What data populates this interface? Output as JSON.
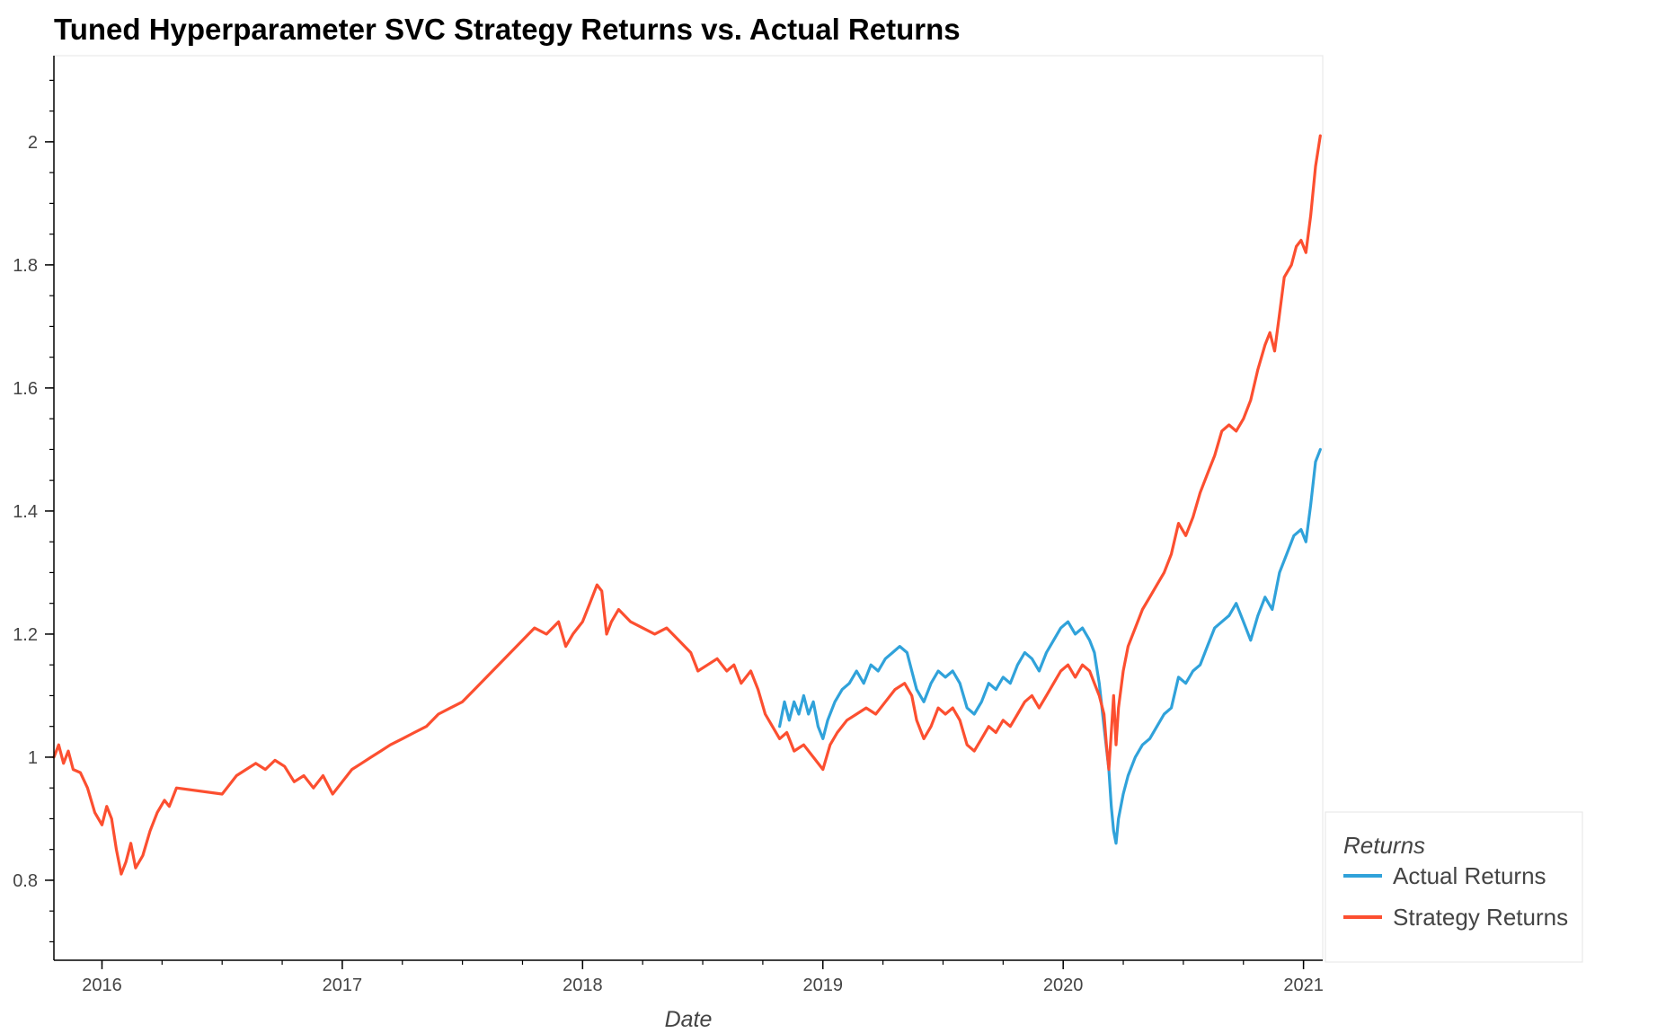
{
  "chart_data": {
    "type": "line",
    "title": "Tuned Hyperparameter SVC Strategy Returns vs. Actual Returns",
    "xlabel": "Date",
    "ylabel": "",
    "xlim": [
      2015.8,
      2021.08
    ],
    "ylim": [
      0.67,
      2.14
    ],
    "x_ticks": [
      "2016",
      "2017",
      "2018",
      "2019",
      "2020",
      "2021"
    ],
    "x_tick_values": [
      2016,
      2017,
      2018,
      2019,
      2020,
      2021
    ],
    "y_ticks": [
      "0.8",
      "1",
      "1.2",
      "1.4",
      "1.6",
      "1.8",
      "2"
    ],
    "y_tick_values": [
      0.8,
      1.0,
      1.2,
      1.4,
      1.6,
      1.8,
      2.0
    ],
    "grid": false,
    "legend": {
      "title": "Returns",
      "placement": "outside-bottom-right"
    },
    "series": [
      {
        "name": "Actual Returns",
        "color": "#30a2da",
        "points": [
          [
            2018.82,
            1.05
          ],
          [
            2018.84,
            1.09
          ],
          [
            2018.86,
            1.06
          ],
          [
            2018.88,
            1.09
          ],
          [
            2018.9,
            1.07
          ],
          [
            2018.92,
            1.1
          ],
          [
            2018.94,
            1.07
          ],
          [
            2018.96,
            1.09
          ],
          [
            2018.98,
            1.05
          ],
          [
            2019.0,
            1.03
          ],
          [
            2019.02,
            1.06
          ],
          [
            2019.05,
            1.09
          ],
          [
            2019.08,
            1.11
          ],
          [
            2019.11,
            1.12
          ],
          [
            2019.14,
            1.14
          ],
          [
            2019.17,
            1.12
          ],
          [
            2019.2,
            1.15
          ],
          [
            2019.23,
            1.14
          ],
          [
            2019.26,
            1.16
          ],
          [
            2019.29,
            1.17
          ],
          [
            2019.32,
            1.18
          ],
          [
            2019.35,
            1.17
          ],
          [
            2019.37,
            1.14
          ],
          [
            2019.39,
            1.11
          ],
          [
            2019.42,
            1.09
          ],
          [
            2019.45,
            1.12
          ],
          [
            2019.48,
            1.14
          ],
          [
            2019.51,
            1.13
          ],
          [
            2019.54,
            1.14
          ],
          [
            2019.57,
            1.12
          ],
          [
            2019.6,
            1.08
          ],
          [
            2019.63,
            1.07
          ],
          [
            2019.66,
            1.09
          ],
          [
            2019.69,
            1.12
          ],
          [
            2019.72,
            1.11
          ],
          [
            2019.75,
            1.13
          ],
          [
            2019.78,
            1.12
          ],
          [
            2019.81,
            1.15
          ],
          [
            2019.84,
            1.17
          ],
          [
            2019.87,
            1.16
          ],
          [
            2019.9,
            1.14
          ],
          [
            2019.93,
            1.17
          ],
          [
            2019.96,
            1.19
          ],
          [
            2019.99,
            1.21
          ],
          [
            2020.02,
            1.22
          ],
          [
            2020.05,
            1.2
          ],
          [
            2020.08,
            1.21
          ],
          [
            2020.11,
            1.19
          ],
          [
            2020.13,
            1.17
          ],
          [
            2020.15,
            1.12
          ],
          [
            2020.17,
            1.05
          ],
          [
            2020.19,
            0.98
          ],
          [
            2020.2,
            0.92
          ],
          [
            2020.21,
            0.88
          ],
          [
            2020.22,
            0.86
          ],
          [
            2020.23,
            0.9
          ],
          [
            2020.25,
            0.94
          ],
          [
            2020.27,
            0.97
          ],
          [
            2020.3,
            1.0
          ],
          [
            2020.33,
            1.02
          ],
          [
            2020.36,
            1.03
          ],
          [
            2020.39,
            1.05
          ],
          [
            2020.42,
            1.07
          ],
          [
            2020.45,
            1.08
          ],
          [
            2020.48,
            1.13
          ],
          [
            2020.51,
            1.12
          ],
          [
            2020.54,
            1.14
          ],
          [
            2020.57,
            1.15
          ],
          [
            2020.6,
            1.18
          ],
          [
            2020.63,
            1.21
          ],
          [
            2020.66,
            1.22
          ],
          [
            2020.69,
            1.23
          ],
          [
            2020.72,
            1.25
          ],
          [
            2020.75,
            1.22
          ],
          [
            2020.78,
            1.19
          ],
          [
            2020.81,
            1.23
          ],
          [
            2020.84,
            1.26
          ],
          [
            2020.87,
            1.24
          ],
          [
            2020.9,
            1.3
          ],
          [
            2020.93,
            1.33
          ],
          [
            2020.96,
            1.36
          ],
          [
            2020.99,
            1.37
          ],
          [
            2021.01,
            1.35
          ],
          [
            2021.03,
            1.41
          ],
          [
            2021.05,
            1.48
          ],
          [
            2021.07,
            1.5
          ]
        ]
      },
      {
        "name": "Strategy Returns",
        "color": "#fc4f30",
        "points": [
          [
            2015.8,
            1.0
          ],
          [
            2015.82,
            1.02
          ],
          [
            2015.84,
            0.99
          ],
          [
            2015.86,
            1.01
          ],
          [
            2015.88,
            0.98
          ],
          [
            2015.91,
            0.975
          ],
          [
            2015.94,
            0.95
          ],
          [
            2015.97,
            0.91
          ],
          [
            2016.0,
            0.89
          ],
          [
            2016.02,
            0.92
          ],
          [
            2016.04,
            0.9
          ],
          [
            2016.06,
            0.85
          ],
          [
            2016.08,
            0.81
          ],
          [
            2016.1,
            0.83
          ],
          [
            2016.12,
            0.86
          ],
          [
            2016.14,
            0.82
          ],
          [
            2016.17,
            0.84
          ],
          [
            2016.2,
            0.88
          ],
          [
            2016.23,
            0.91
          ],
          [
            2016.26,
            0.93
          ],
          [
            2016.28,
            0.92
          ],
          [
            2016.31,
            0.95
          ],
          [
            2016.5,
            0.94
          ],
          [
            2016.53,
            0.955
          ],
          [
            2016.56,
            0.97
          ],
          [
            2016.6,
            0.98
          ],
          [
            2016.64,
            0.99
          ],
          [
            2016.68,
            0.98
          ],
          [
            2016.72,
            0.995
          ],
          [
            2016.76,
            0.985
          ],
          [
            2016.8,
            0.96
          ],
          [
            2016.84,
            0.97
          ],
          [
            2016.88,
            0.95
          ],
          [
            2016.92,
            0.97
          ],
          [
            2016.96,
            0.94
          ],
          [
            2017.0,
            0.96
          ],
          [
            2017.04,
            0.98
          ],
          [
            2017.08,
            0.99
          ],
          [
            2017.12,
            1.0
          ],
          [
            2017.16,
            1.01
          ],
          [
            2017.2,
            1.02
          ],
          [
            2017.25,
            1.03
          ],
          [
            2017.3,
            1.04
          ],
          [
            2017.35,
            1.05
          ],
          [
            2017.4,
            1.07
          ],
          [
            2017.45,
            1.08
          ],
          [
            2017.5,
            1.09
          ],
          [
            2017.55,
            1.11
          ],
          [
            2017.6,
            1.13
          ],
          [
            2017.65,
            1.15
          ],
          [
            2017.7,
            1.17
          ],
          [
            2017.75,
            1.19
          ],
          [
            2017.8,
            1.21
          ],
          [
            2017.85,
            1.2
          ],
          [
            2017.9,
            1.22
          ],
          [
            2017.93,
            1.18
          ],
          [
            2017.96,
            1.2
          ],
          [
            2018.0,
            1.22
          ],
          [
            2018.03,
            1.25
          ],
          [
            2018.06,
            1.28
          ],
          [
            2018.08,
            1.27
          ],
          [
            2018.1,
            1.2
          ],
          [
            2018.12,
            1.22
          ],
          [
            2018.15,
            1.24
          ],
          [
            2018.2,
            1.22
          ],
          [
            2018.25,
            1.21
          ],
          [
            2018.3,
            1.2
          ],
          [
            2018.35,
            1.21
          ],
          [
            2018.4,
            1.19
          ],
          [
            2018.45,
            1.17
          ],
          [
            2018.48,
            1.14
          ],
          [
            2018.52,
            1.15
          ],
          [
            2018.56,
            1.16
          ],
          [
            2018.6,
            1.14
          ],
          [
            2018.63,
            1.15
          ],
          [
            2018.66,
            1.12
          ],
          [
            2018.7,
            1.14
          ],
          [
            2018.73,
            1.11
          ],
          [
            2018.76,
            1.07
          ],
          [
            2018.79,
            1.05
          ],
          [
            2018.82,
            1.03
          ],
          [
            2018.85,
            1.04
          ],
          [
            2018.88,
            1.01
          ],
          [
            2018.92,
            1.02
          ],
          [
            2018.96,
            1.0
          ],
          [
            2019.0,
            0.98
          ],
          [
            2019.03,
            1.02
          ],
          [
            2019.06,
            1.04
          ],
          [
            2019.1,
            1.06
          ],
          [
            2019.14,
            1.07
          ],
          [
            2019.18,
            1.08
          ],
          [
            2019.22,
            1.07
          ],
          [
            2019.26,
            1.09
          ],
          [
            2019.3,
            1.11
          ],
          [
            2019.34,
            1.12
          ],
          [
            2019.37,
            1.1
          ],
          [
            2019.39,
            1.06
          ],
          [
            2019.42,
            1.03
          ],
          [
            2019.45,
            1.05
          ],
          [
            2019.48,
            1.08
          ],
          [
            2019.51,
            1.07
          ],
          [
            2019.54,
            1.08
          ],
          [
            2019.57,
            1.06
          ],
          [
            2019.6,
            1.02
          ],
          [
            2019.63,
            1.01
          ],
          [
            2019.66,
            1.03
          ],
          [
            2019.69,
            1.05
          ],
          [
            2019.72,
            1.04
          ],
          [
            2019.75,
            1.06
          ],
          [
            2019.78,
            1.05
          ],
          [
            2019.81,
            1.07
          ],
          [
            2019.84,
            1.09
          ],
          [
            2019.87,
            1.1
          ],
          [
            2019.9,
            1.08
          ],
          [
            2019.93,
            1.1
          ],
          [
            2019.96,
            1.12
          ],
          [
            2019.99,
            1.14
          ],
          [
            2020.02,
            1.15
          ],
          [
            2020.05,
            1.13
          ],
          [
            2020.08,
            1.15
          ],
          [
            2020.11,
            1.14
          ],
          [
            2020.13,
            1.12
          ],
          [
            2020.15,
            1.1
          ],
          [
            2020.17,
            1.07
          ],
          [
            2020.18,
            1.02
          ],
          [
            2020.19,
            0.98
          ],
          [
            2020.2,
            1.04
          ],
          [
            2020.21,
            1.1
          ],
          [
            2020.22,
            1.02
          ],
          [
            2020.23,
            1.08
          ],
          [
            2020.25,
            1.14
          ],
          [
            2020.27,
            1.18
          ],
          [
            2020.3,
            1.21
          ],
          [
            2020.33,
            1.24
          ],
          [
            2020.36,
            1.26
          ],
          [
            2020.39,
            1.28
          ],
          [
            2020.42,
            1.3
          ],
          [
            2020.45,
            1.33
          ],
          [
            2020.48,
            1.38
          ],
          [
            2020.51,
            1.36
          ],
          [
            2020.54,
            1.39
          ],
          [
            2020.57,
            1.43
          ],
          [
            2020.6,
            1.46
          ],
          [
            2020.63,
            1.49
          ],
          [
            2020.66,
            1.53
          ],
          [
            2020.69,
            1.54
          ],
          [
            2020.72,
            1.53
          ],
          [
            2020.75,
            1.55
          ],
          [
            2020.78,
            1.58
          ],
          [
            2020.81,
            1.63
          ],
          [
            2020.84,
            1.67
          ],
          [
            2020.86,
            1.69
          ],
          [
            2020.88,
            1.66
          ],
          [
            2020.9,
            1.72
          ],
          [
            2020.92,
            1.78
          ],
          [
            2020.95,
            1.8
          ],
          [
            2020.97,
            1.83
          ],
          [
            2020.99,
            1.84
          ],
          [
            2021.01,
            1.82
          ],
          [
            2021.03,
            1.88
          ],
          [
            2021.05,
            1.96
          ],
          [
            2021.07,
            2.01
          ]
        ]
      }
    ]
  }
}
